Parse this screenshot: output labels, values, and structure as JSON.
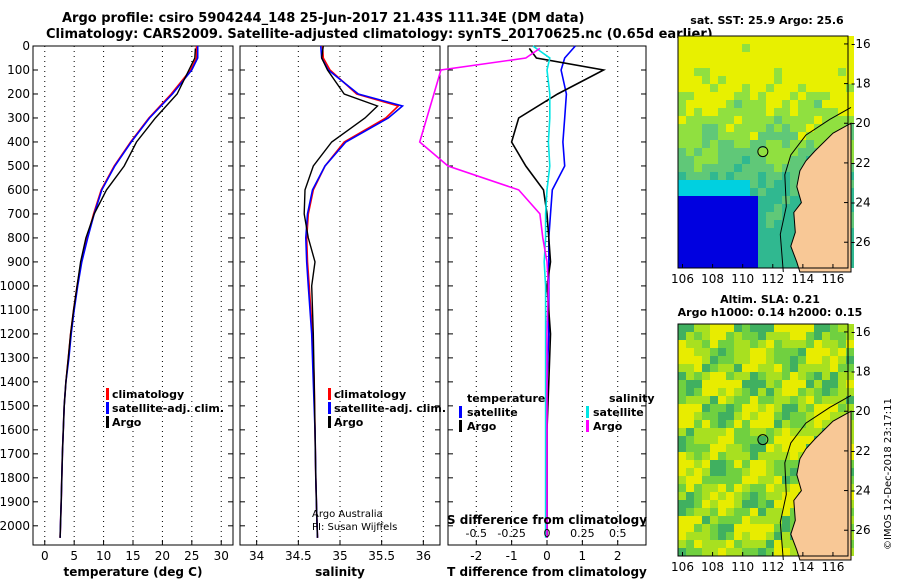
{
  "header": {
    "line1": "Argo profile: csiro 5904244_148 25-Jun-2017 21.43S 111.34E (DM data)",
    "line2": "Climatology: CARS2009. Satellite-adjusted climatology: synTS_20170625.nc (0.65d earlier)"
  },
  "colors": {
    "climatology": "#ff0000",
    "satellite": "#0000ff",
    "argo": "#000000",
    "sat_salinity": "#00e5e5",
    "argo_salinity": "#ff00ff",
    "land": "#f8c896"
  },
  "chart_data": [
    {
      "type": "line",
      "name": "temperature-profile",
      "xlabel": "temperature (deg C)",
      "ylabel": "",
      "xlim": [
        -2,
        32
      ],
      "ylim": [
        2080,
        0
      ],
      "xticks": [
        "0",
        "5",
        "10",
        "15",
        "20",
        "25",
        "30"
      ],
      "yticks": [
        "0",
        "100",
        "200",
        "300",
        "400",
        "500",
        "600",
        "700",
        "800",
        "900",
        "1000",
        "1100",
        "1200",
        "1300",
        "1400",
        "1500",
        "1600",
        "1700",
        "1800",
        "1900",
        "2000"
      ],
      "legend": [
        "climatology",
        "satellite-adj. clim.",
        "Argo"
      ],
      "legend_position": "lower-right",
      "series": [
        {
          "name": "climatology",
          "x": [
            25.8,
            25.8,
            24.8,
            21.5,
            17.7,
            14.6,
            11.8,
            9.6,
            8.3,
            7.2,
            6.2,
            5.5,
            4.9,
            4.4,
            4.0,
            3.6,
            3.3,
            3.0,
            2.8,
            2.6
          ],
          "y": [
            0,
            50,
            100,
            200,
            300,
            400,
            500,
            600,
            700,
            800,
            900,
            1000,
            1100,
            1200,
            1300,
            1400,
            1500,
            1700,
            1900,
            2050
          ]
        },
        {
          "name": "satellite-adj. clim.",
          "x": [
            26.0,
            26.0,
            25.0,
            21.7,
            17.8,
            14.7,
            11.9,
            9.7,
            8.4,
            7.3,
            6.3,
            5.6,
            5.0,
            4.5,
            4.1,
            3.6,
            3.3,
            3.0,
            2.8,
            2.6
          ],
          "y": [
            0,
            50,
            100,
            200,
            300,
            400,
            500,
            600,
            700,
            800,
            900,
            1000,
            1100,
            1200,
            1300,
            1400,
            1500,
            1700,
            1900,
            2050
          ]
        },
        {
          "name": "Argo",
          "x": [
            25.6,
            25.5,
            24.5,
            22.5,
            18.8,
            15.6,
            13.5,
            10.5,
            8.4,
            7.0,
            6.1,
            5.5,
            4.9,
            4.4,
            4.0,
            3.6,
            3.3,
            3.0,
            2.8,
            2.6
          ],
          "y": [
            10,
            50,
            100,
            200,
            300,
            400,
            500,
            600,
            700,
            800,
            900,
            1000,
            1100,
            1200,
            1300,
            1400,
            1500,
            1700,
            1900,
            2050
          ]
        }
      ]
    },
    {
      "type": "line",
      "name": "salinity-profile",
      "xlabel": "salinity",
      "xlim": [
        33.8,
        36.2
      ],
      "ylim": [
        2080,
        0
      ],
      "xticks": [
        "34",
        "34.5",
        "35",
        "35.5",
        "36"
      ],
      "legend": [
        "climatology",
        "satellite-adj. clim.",
        "Argo"
      ],
      "legend_position": "lower-right",
      "credit": [
        "Argo Australia",
        "PI: Susan Wijffels"
      ],
      "series": [
        {
          "name": "climatology",
          "x": [
            34.79,
            34.8,
            34.88,
            35.2,
            35.7,
            35.55,
            35.05,
            34.82,
            34.68,
            34.62,
            34.6,
            34.61,
            34.63,
            34.65,
            34.67,
            34.69,
            34.7,
            34.71,
            34.72,
            34.73
          ],
          "y": [
            0,
            50,
            100,
            200,
            250,
            300,
            400,
            500,
            600,
            700,
            800,
            900,
            1000,
            1100,
            1200,
            1400,
            1600,
            1800,
            1950,
            2050
          ]
        },
        {
          "name": "satellite-adj. clim.",
          "x": [
            34.77,
            34.78,
            34.86,
            35.22,
            35.75,
            35.58,
            35.07,
            34.82,
            34.67,
            34.61,
            34.59,
            34.6,
            34.62,
            34.64,
            34.66,
            34.68,
            34.7,
            34.71,
            34.72,
            34.73
          ],
          "y": [
            0,
            50,
            100,
            200,
            250,
            300,
            400,
            500,
            600,
            700,
            800,
            900,
            1000,
            1100,
            1200,
            1400,
            1600,
            1800,
            1950,
            2050
          ]
        },
        {
          "name": "Argo",
          "x": [
            34.8,
            34.78,
            34.85,
            35.05,
            35.45,
            35.3,
            34.9,
            34.68,
            34.58,
            34.57,
            34.62,
            34.7,
            34.66,
            34.67,
            34.68,
            34.69,
            34.7,
            34.71,
            34.72,
            34.73
          ],
          "y": [
            0,
            50,
            100,
            200,
            250,
            300,
            400,
            500,
            600,
            700,
            800,
            900,
            1000,
            1100,
            1200,
            1400,
            1600,
            1800,
            1950,
            2050
          ]
        }
      ]
    },
    {
      "type": "line",
      "name": "difference-profile",
      "xlabel": "T difference from climatology",
      "xlabel2": "S difference from climatology",
      "xlim": [
        -2.8,
        2.8
      ],
      "ylim": [
        2080,
        0
      ],
      "xticks": [
        "-2",
        "-1",
        "0",
        "1",
        "2"
      ],
      "xticks_s": [
        "-0.5",
        "-0.25",
        "0",
        "0.25",
        "0.5"
      ],
      "legend_left_title": "temperature",
      "legend_right_title": "salinity",
      "legend_left": [
        "satellite",
        "Argo"
      ],
      "legend_right": [
        "satellite",
        "Argo"
      ],
      "series": [
        {
          "name": "temperature satellite",
          "x": [
            0.8,
            0.5,
            0.4,
            0.55,
            0.5,
            0.45,
            0.5,
            0.15,
            0.1,
            0.05,
            0.05,
            0.05,
            0.05,
            0.0,
            0.0,
            0.0,
            0.0
          ],
          "y": [
            0,
            50,
            100,
            200,
            300,
            400,
            500,
            600,
            700,
            800,
            900,
            1000,
            1200,
            1400,
            1600,
            1800,
            2050
          ]
        },
        {
          "name": "temperature Argo",
          "x": [
            -0.5,
            -0.3,
            1.6,
            0.3,
            -0.8,
            -1.0,
            -0.6,
            -0.1,
            0.0,
            0.05,
            0.1,
            0.0,
            0.1,
            0.05,
            0.0,
            0.0,
            0.0
          ],
          "y": [
            10,
            50,
            100,
            200,
            300,
            400,
            500,
            600,
            700,
            800,
            900,
            1000,
            1200,
            1400,
            1600,
            1800,
            2050
          ]
        },
        {
          "name": "salinity satellite",
          "x": [
            -0.1,
            0.02,
            0.0,
            0.02,
            0.02,
            0.01,
            0.02,
            0.0,
            -0.01,
            -0.01,
            -0.02,
            -0.01,
            -0.01,
            -0.01,
            -0.01,
            -0.01,
            -0.01
          ],
          "y": [
            0,
            50,
            100,
            200,
            300,
            400,
            500,
            600,
            700,
            800,
            900,
            1000,
            1200,
            1400,
            1600,
            1800,
            2050
          ]
        },
        {
          "name": "salinity Argo",
          "x": [
            -0.05,
            -0.15,
            -0.75,
            -0.8,
            -0.85,
            -0.9,
            -0.7,
            -0.2,
            -0.05,
            -0.03,
            0.0,
            0.01,
            0.0,
            0.0,
            0.0,
            0.0,
            0.0
          ],
          "y": [
            10,
            50,
            100,
            200,
            300,
            400,
            500,
            600,
            700,
            800,
            900,
            1000,
            1200,
            1400,
            1600,
            1800,
            2050
          ]
        }
      ]
    },
    {
      "type": "heatmap",
      "name": "sst-map",
      "title": "sat. SST: 25.9 Argo: 25.6",
      "xticks": [
        "106",
        "108",
        "110",
        "112",
        "114",
        "116"
      ],
      "yticks": [
        "-16",
        "-18",
        "-20",
        "-22",
        "-24",
        "-26"
      ],
      "xlim": [
        105.7,
        117
      ],
      "ylim": [
        -27.3,
        -15.6
      ],
      "profile_location": {
        "lon": 111.34,
        "lat": -21.43
      }
    },
    {
      "type": "heatmap",
      "name": "sla-map",
      "title": "Altim. SLA: 0.21",
      "subtitle": "Argo h1000: 0.14 h2000: 0.15",
      "xticks": [
        "106",
        "108",
        "110",
        "112",
        "114",
        "116"
      ],
      "yticks": [
        "-16",
        "-18",
        "-20",
        "-22",
        "-24",
        "-26"
      ],
      "xlim": [
        105.7,
        117
      ],
      "ylim": [
        -27.3,
        -15.6
      ],
      "profile_location": {
        "lon": 111.34,
        "lat": -21.43
      }
    }
  ],
  "footer": {
    "imos_stamp": "©IMOS 12-Dec-2018 23:17:11"
  }
}
